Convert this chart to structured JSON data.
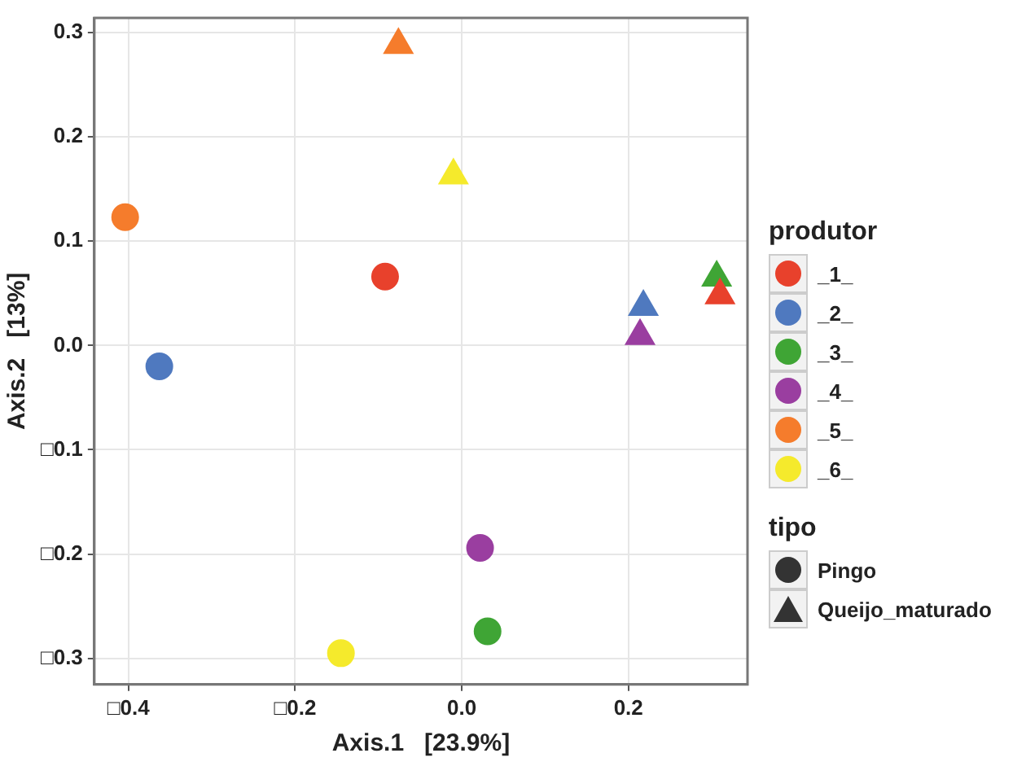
{
  "chart_data": {
    "type": "scatter",
    "xlabel": "Axis.1   [23.9%]",
    "ylabel": "Axis.2   [13%]",
    "legend_title": "produtor",
    "legend": "right",
    "grid": true,
    "annotations": [
      "tipo",
      "Pingo",
      "Queijo_maturado"
    ],
    "xlim": [
      -0.441,
      0.343
    ],
    "xticks": [
      {
        "value": -0.4,
        "label": "□0.4"
      },
      {
        "value": -0.2,
        "label": "□0.2"
      },
      {
        "value": 0,
        "label": "0.0"
      },
      {
        "value": 0.2,
        "label": "0.2"
      }
    ],
    "ylim": [
      -0.325,
      0.314
    ],
    "yticks": [
      {
        "value": -0.3,
        "label": "□0.3"
      },
      {
        "value": -0.2,
        "label": "□0.2"
      },
      {
        "value": -0.1,
        "label": "□0.1"
      },
      {
        "value": 0,
        "label": "0.0"
      },
      {
        "value": 0.1,
        "label": "0.1"
      },
      {
        "value": 0.2,
        "label": "0.2"
      },
      {
        "value": 0.3,
        "label": "0.3"
      }
    ],
    "series": [
      {
        "name": "_1_",
        "color": "#e8412c",
        "marker": "circle",
        "x": [
          -0.092
        ],
        "values": [
          0.066
        ]
      },
      {
        "name": "_2_",
        "color": "#4f79bf",
        "marker": "circle",
        "x": [
          -0.363
        ],
        "values": [
          -0.02
        ]
      },
      {
        "name": "_3_",
        "color": "#3fa535",
        "marker": "circle",
        "x": [
          0.031
        ],
        "values": [
          -0.274
        ]
      },
      {
        "name": "_4_",
        "color": "#9a3ea0",
        "marker": "circle",
        "x": [
          0.022
        ],
        "values": [
          -0.194
        ]
      },
      {
        "name": "_5_",
        "color": "#f57c2c",
        "marker": "circle",
        "x": [
          -0.404
        ],
        "values": [
          0.123
        ]
      },
      {
        "name": "_6_",
        "color": "#f5ea2c",
        "marker": "circle",
        "x": [
          -0.145
        ],
        "values": [
          -0.295
        ]
      },
      {
        "color": "#e8412c",
        "marker": "triangle",
        "x": [
          0.31
        ],
        "values": [
          0.048
        ]
      },
      {
        "color": "#4f79bf",
        "marker": "triangle",
        "x": [
          0.218
        ],
        "values": [
          0.037
        ]
      },
      {
        "color": "#3fa535",
        "marker": "triangle",
        "x": [
          0.306
        ],
        "values": [
          0.065
        ]
      },
      {
        "color": "#9a3ea0",
        "marker": "triangle",
        "x": [
          0.214
        ],
        "values": [
          0.009
        ]
      },
      {
        "color": "#f57c2c",
        "marker": "triangle",
        "x": [
          -0.076
        ],
        "values": [
          0.288
        ]
      },
      {
        "color": "#f5ea2c",
        "marker": "triangle",
        "x": [
          -0.01
        ],
        "values": [
          0.163
        ]
      }
    ]
  }
}
